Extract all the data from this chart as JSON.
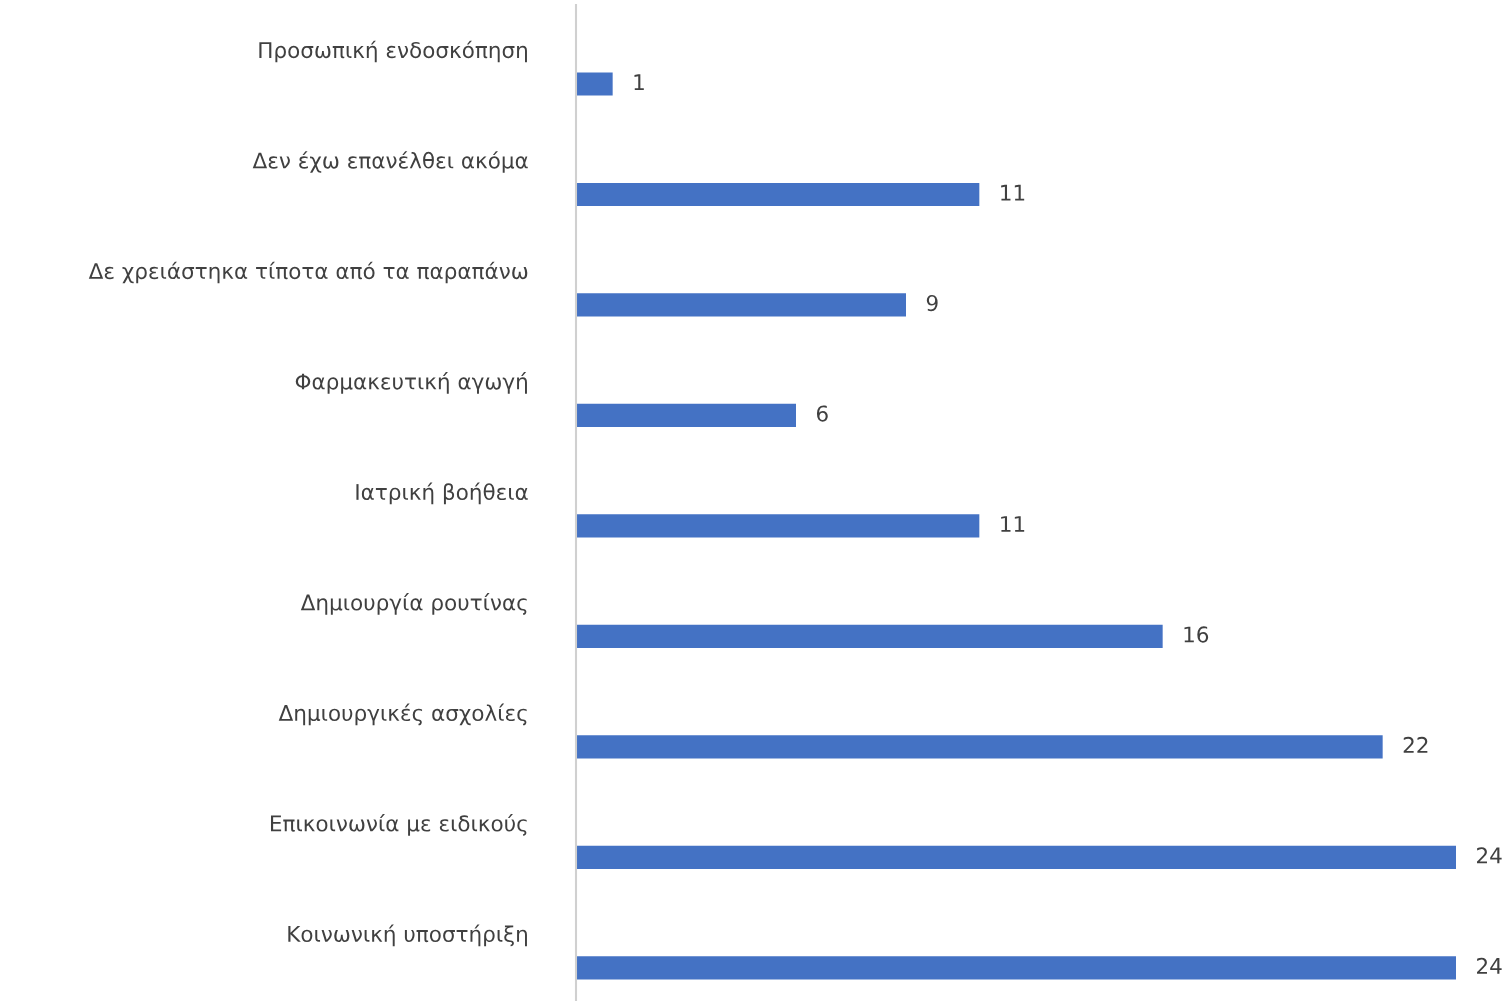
{
  "chart_data": {
    "type": "bar",
    "orientation": "horizontal",
    "categories": [
      "Προσωπική ενδοσκόπηση",
      "Δεν έχω επανέλθει ακόμα",
      "Δε χρειάστηκα τίποτα από τα παραπάνω",
      "Φαρμακευτική αγωγή",
      "Ιατρική βοήθεια",
      "Δημιουργία ρουτίνας",
      "Δημιουργικές ασχολίες",
      "Επικοινωνία με ειδικούς",
      "Κοινωνική υποστήριξη"
    ],
    "values": [
      1,
      11,
      9,
      6,
      11,
      16,
      22,
      24,
      24
    ],
    "color": "#4472c4",
    "data_labels": true,
    "grid": false,
    "legend": false
  }
}
